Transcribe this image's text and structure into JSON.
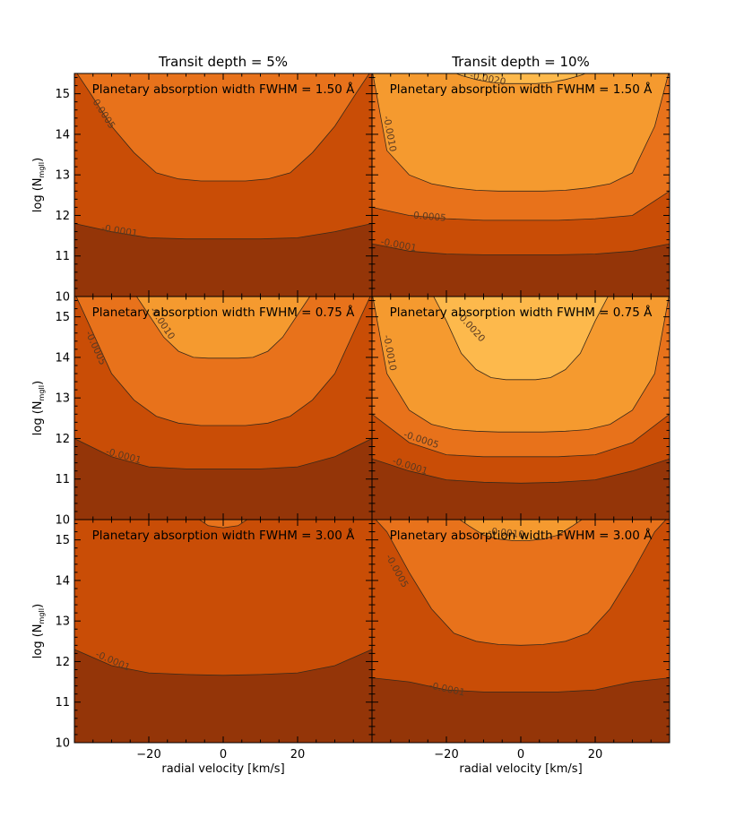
{
  "chart_data": {
    "type": "contour",
    "columns": [
      {
        "title": "Transit depth = 5%"
      },
      {
        "title": "Transit depth = 10%"
      }
    ],
    "rows": [
      {
        "fwhm_label": "Planetary absorption width FWHM = 1.50 Å"
      },
      {
        "fwhm_label": "Planetary absorption width FWHM = 0.75 Å"
      },
      {
        "fwhm_label": "Planetary absorption width FWHM = 3.00 Å"
      }
    ],
    "xlabel": "radial velocity [km/s]",
    "ylabel_main": "log (N",
    "ylabel_sub": "mgII",
    "ylabel_close": ")",
    "xlim": [
      -40,
      40
    ],
    "ylim": [
      10,
      15.5
    ],
    "x_ticks": [
      -20,
      0,
      20
    ],
    "y_ticks": [
      10,
      11,
      12,
      13,
      14,
      15
    ],
    "colors": {
      "level_0": "#943508",
      "level_1": "#c94d06",
      "level_2": "#e8721b",
      "level_3": "#f59a2f",
      "level_4": "#fdb94c"
    },
    "panels": [
      {
        "row": 0,
        "col": 0,
        "contours": [
          {
            "label": "-0.0001",
            "label_at": [
              -28,
              11.55
            ],
            "x": [
              -40,
              -30,
              -20,
              -10,
              0,
              10,
              20,
              30,
              40
            ],
            "y": [
              11.8,
              11.6,
              11.45,
              11.42,
              11.42,
              11.42,
              11.45,
              11.6,
              11.8
            ]
          },
          {
            "label": "-0.0005",
            "label_at": [
              -33,
              14.5
            ],
            "x": [
              -40,
              -36,
              -30,
              -24,
              -18,
              -12,
              -6,
              0,
              6,
              12,
              18,
              24,
              30,
              36,
              40
            ],
            "y": [
              15.6,
              15.05,
              14.2,
              13.55,
              13.05,
              12.9,
              12.85,
              12.85,
              12.85,
              12.9,
              13.05,
              13.55,
              14.2,
              15.05,
              15.6
            ]
          }
        ]
      },
      {
        "row": 0,
        "col": 1,
        "contours": [
          {
            "label": "-0.0001",
            "label_at": [
              -33,
              11.2
            ],
            "x": [
              -40,
              -30,
              -20,
              -10,
              0,
              10,
              20,
              30,
              40
            ],
            "y": [
              11.3,
              11.12,
              11.05,
              11.03,
              11.03,
              11.03,
              11.05,
              11.12,
              11.3
            ]
          },
          {
            "label": "-0.0005",
            "label_at": [
              -25,
              11.9
            ],
            "x": [
              -40,
              -30,
              -20,
              -10,
              0,
              10,
              20,
              30,
              40
            ],
            "y": [
              12.2,
              12.0,
              11.92,
              11.88,
              11.88,
              11.88,
              11.92,
              12.0,
              12.6
            ]
          },
          {
            "label": "-0.0010",
            "label_at": [
              -36,
              14.0
            ],
            "x": [
              -40,
              -36,
              -30,
              -24,
              -18,
              -12,
              -6,
              0,
              6,
              12,
              18,
              24,
              30,
              36,
              40
            ],
            "y": [
              15.6,
              13.6,
              13.0,
              12.78,
              12.68,
              12.62,
              12.6,
              12.6,
              12.6,
              12.62,
              12.68,
              12.78,
              13.05,
              14.2,
              15.6
            ]
          },
          {
            "label": "-0.0020",
            "label_at": [
              -9,
              15.3
            ],
            "x": [
              -20,
              -16,
              -12,
              -8,
              -4,
              0,
              4,
              8,
              12,
              16,
              20
            ],
            "y": [
              15.6,
              15.45,
              15.35,
              15.28,
              15.25,
              15.25,
              15.25,
              15.28,
              15.35,
              15.45,
              15.6
            ]
          }
        ]
      },
      {
        "row": 1,
        "col": 0,
        "contours": [
          {
            "label": "-0.0001",
            "label_at": [
              -27,
              11.5
            ],
            "x": [
              -40,
              -30,
              -20,
              -10,
              0,
              10,
              20,
              30,
              40
            ],
            "y": [
              12.0,
              11.55,
              11.3,
              11.25,
              11.25,
              11.25,
              11.3,
              11.55,
              12.0
            ]
          },
          {
            "label": "-0.0005",
            "label_at": [
              -35,
              14.2
            ],
            "x": [
              -40,
              -36,
              -30,
              -24,
              -18,
              -12,
              -6,
              0,
              6,
              12,
              18,
              24,
              30,
              36,
              40
            ],
            "y": [
              15.6,
              14.8,
              13.6,
              12.95,
              12.55,
              12.38,
              12.32,
              12.32,
              12.32,
              12.38,
              12.55,
              12.95,
              13.6,
              14.8,
              15.6
            ]
          },
          {
            "label": "-0.0010",
            "label_at": [
              -17,
              14.8
            ],
            "x": [
              -24,
              -20,
              -16,
              -12,
              -8,
              -4,
              0,
              4,
              8,
              12,
              16,
              20,
              24
            ],
            "y": [
              15.6,
              15.05,
              14.5,
              14.15,
              14.0,
              13.98,
              13.98,
              13.98,
              14.0,
              14.15,
              14.5,
              15.05,
              15.6
            ]
          }
        ]
      },
      {
        "row": 1,
        "col": 1,
        "contours": [
          {
            "label": "-0.0001",
            "label_at": [
              -30,
              11.25
            ],
            "x": [
              -40,
              -30,
              -20,
              -10,
              0,
              10,
              20,
              30,
              40
            ],
            "y": [
              11.5,
              11.2,
              10.98,
              10.92,
              10.9,
              10.92,
              10.98,
              11.2,
              11.5
            ]
          },
          {
            "label": "-0.0005",
            "label_at": [
              -27,
              11.9
            ],
            "x": [
              -40,
              -30,
              -20,
              -10,
              0,
              10,
              20,
              30,
              40
            ],
            "y": [
              12.6,
              11.9,
              11.6,
              11.55,
              11.55,
              11.55,
              11.6,
              11.9,
              12.6
            ]
          },
          {
            "label": "-0.0010",
            "label_at": [
              -36,
              14.1
            ],
            "x": [
              -40,
              -36,
              -30,
              -24,
              -18,
              -12,
              -6,
              0,
              6,
              12,
              18,
              24,
              30,
              36,
              40
            ],
            "y": [
              15.6,
              13.6,
              12.7,
              12.35,
              12.22,
              12.18,
              12.16,
              12.16,
              12.16,
              12.18,
              12.22,
              12.35,
              12.7,
              13.6,
              15.6
            ]
          },
          {
            "label": "-0.0020",
            "label_at": [
              -14,
              14.7
            ],
            "x": [
              -24,
              -20,
              -16,
              -12,
              -8,
              -4,
              0,
              4,
              8,
              12,
              16,
              20,
              24
            ],
            "y": [
              15.6,
              14.9,
              14.1,
              13.7,
              13.5,
              13.45,
              13.45,
              13.45,
              13.5,
              13.7,
              14.1,
              14.9,
              15.6
            ]
          }
        ]
      },
      {
        "row": 2,
        "col": 0,
        "contours": [
          {
            "label": "-0.0001",
            "label_at": [
              -30,
              11.95
            ],
            "x": [
              -40,
              -30,
              -20,
              -10,
              0,
              10,
              20,
              30,
              40
            ],
            "y": [
              12.3,
              11.9,
              11.72,
              11.68,
              11.66,
              11.68,
              11.72,
              11.9,
              12.3
            ]
          },
          {
            "label": "",
            "label_at": null,
            "x": [
              -8,
              -4,
              0,
              4,
              8
            ],
            "y": [
              15.6,
              15.35,
              15.3,
              15.35,
              15.6
            ]
          }
        ]
      },
      {
        "row": 2,
        "col": 1,
        "contours": [
          {
            "label": "-0.0001",
            "label_at": [
              -20,
              11.25
            ],
            "x": [
              -40,
              -30,
              -20,
              -10,
              0,
              10,
              20,
              30,
              40
            ],
            "y": [
              11.6,
              11.5,
              11.3,
              11.25,
              11.25,
              11.25,
              11.3,
              11.5,
              11.6
            ]
          },
          {
            "label": "-0.0005",
            "label_at": [
              -34,
              14.2
            ],
            "x": [
              -40,
              -36,
              -30,
              -24,
              -18,
              -12,
              -6,
              0,
              6,
              12,
              18,
              24,
              30,
              36,
              40
            ],
            "y": [
              15.6,
              15.2,
              14.2,
              13.3,
              12.7,
              12.5,
              12.42,
              12.4,
              12.42,
              12.5,
              12.7,
              13.3,
              14.2,
              15.2,
              15.6
            ]
          },
          {
            "label": "-0.0010",
            "label_at": [
              -4,
              15.1
            ],
            "x": [
              -18,
              -14,
              -10,
              -6,
              -2,
              0,
              2,
              6,
              10,
              14,
              18
            ],
            "y": [
              15.6,
              15.35,
              15.12,
              15.02,
              14.98,
              14.98,
              14.98,
              15.02,
              15.12,
              15.35,
              15.6
            ]
          }
        ]
      }
    ]
  }
}
